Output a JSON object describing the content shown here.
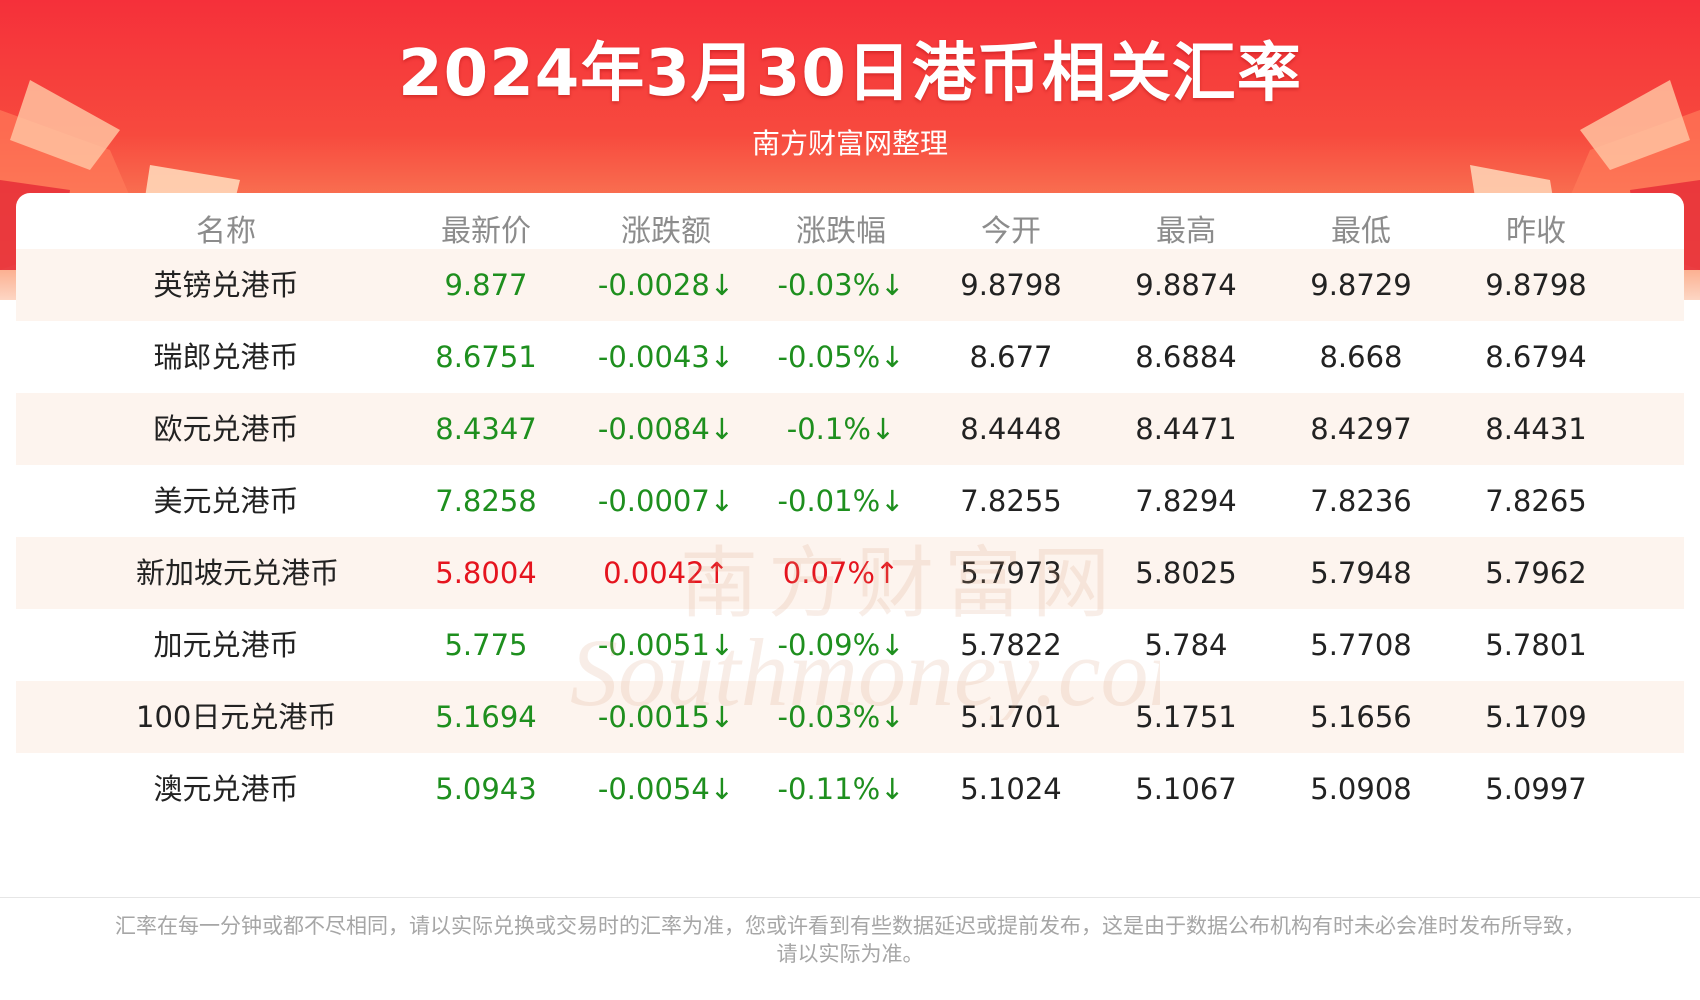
{
  "banner": {
    "title": "2024年3月30日港币相关汇率",
    "subtitle": "南方财富网整理"
  },
  "colors": {
    "banner_red": "#f5303a",
    "down": "#1e8f1e",
    "up": "#e5141e",
    "stripe": "#fdf4ee"
  },
  "table": {
    "headers": [
      "名称",
      "最新价",
      "涨跌额",
      "涨跌幅",
      "今开",
      "最高",
      "最低",
      "昨收"
    ],
    "rows": [
      {
        "name": "英镑兑港币",
        "latest": "9.877",
        "change": "-0.0028↓",
        "change_pct": "-0.03%↓",
        "open": "9.8798",
        "high": "9.8874",
        "low": "9.8729",
        "prev_close": "9.8798",
        "trend": "down"
      },
      {
        "name": "瑞郎兑港币",
        "latest": "8.6751",
        "change": "-0.0043↓",
        "change_pct": "-0.05%↓",
        "open": "8.677",
        "high": "8.6884",
        "low": "8.668",
        "prev_close": "8.6794",
        "trend": "down"
      },
      {
        "name": "欧元兑港币",
        "latest": "8.4347",
        "change": "-0.0084↓",
        "change_pct": "-0.1%↓",
        "open": "8.4448",
        "high": "8.4471",
        "low": "8.4297",
        "prev_close": "8.4431",
        "trend": "down"
      },
      {
        "name": "美元兑港币",
        "latest": "7.8258",
        "change": "-0.0007↓",
        "change_pct": "-0.01%↓",
        "open": "7.8255",
        "high": "7.8294",
        "low": "7.8236",
        "prev_close": "7.8265",
        "trend": "down"
      },
      {
        "name": "新加坡元兑港币",
        "latest": "5.8004",
        "change": "0.0042↑",
        "change_pct": "0.07%↑",
        "open": "5.7973",
        "high": "5.8025",
        "low": "5.7948",
        "prev_close": "5.7962",
        "trend": "up"
      },
      {
        "name": "加元兑港币",
        "latest": "5.775",
        "change": "-0.0051↓",
        "change_pct": "-0.09%↓",
        "open": "5.7822",
        "high": "5.784",
        "low": "5.7708",
        "prev_close": "5.7801",
        "trend": "down"
      },
      {
        "name": "100日元兑港币",
        "latest": "5.1694",
        "change": "-0.0015↓",
        "change_pct": "-0.03%↓",
        "open": "5.1701",
        "high": "5.1751",
        "low": "5.1656",
        "prev_close": "5.1709",
        "trend": "down"
      },
      {
        "name": "澳元兑港币",
        "latest": "5.0943",
        "change": "-0.0054↓",
        "change_pct": "-0.11%↓",
        "open": "5.1024",
        "high": "5.1067",
        "low": "5.0908",
        "prev_close": "5.0997",
        "trend": "down"
      }
    ]
  },
  "watermark": {
    "cn": "南方财富网",
    "en": "Southmoney.com"
  },
  "footnote": {
    "line1": "汇率在每一分钟或都不尽相同，请以实际兑换或交易时的汇率为准，您或许看到有些数据延迟或提前发布，这是由于数据公布机构有时未必会准时发布所导致，",
    "line2": "请以实际为准。"
  }
}
